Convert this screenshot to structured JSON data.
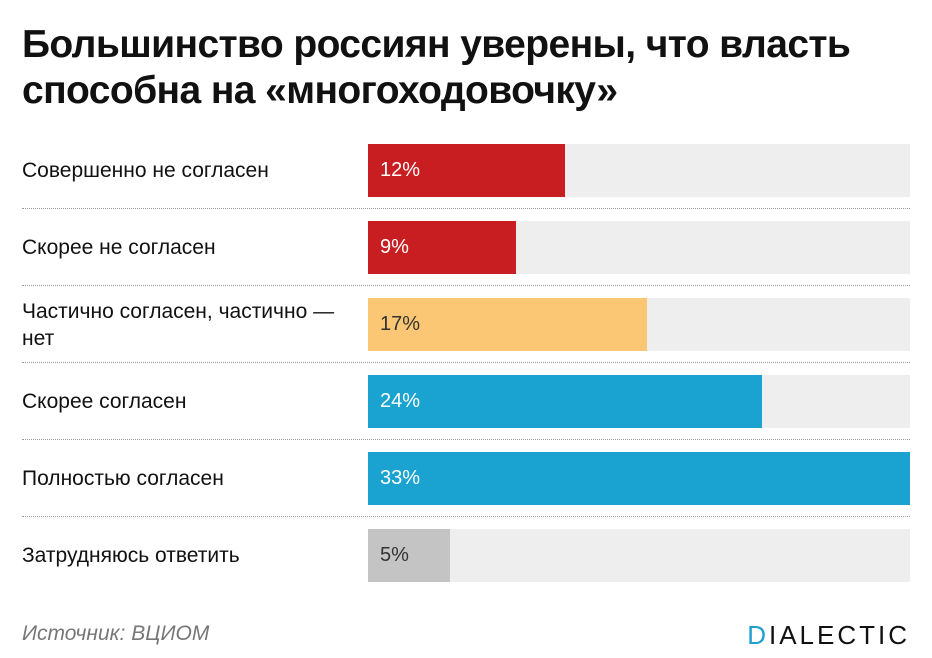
{
  "title": "Большинство россиян уверены, что власть способна на «многоходовочку»",
  "source": "Источник: ВЦИОМ",
  "brand": {
    "first_letter": "D",
    "rest": "IALECTIC"
  },
  "colors": {
    "strong_disagree": "#c81e22",
    "disagree": "#c81e22",
    "neutral": "#fbc774",
    "agree": "#1aa3d1",
    "strong_agree": "#1aa3d1",
    "unsure": "#c4c4c4",
    "track": "#eeeeee",
    "brand_accent": "#1f9fd0"
  },
  "chart_data": {
    "type": "bar",
    "orientation": "horizontal",
    "title": "Большинство россиян уверены, что власть способна на «многоходовочку»",
    "xlim": [
      0,
      33
    ],
    "categories": [
      "Совершенно не согласен",
      "Скорее не согласен",
      "Частично согласен, частично — нет",
      "Скорее согласен",
      "Полностью согласен",
      "Затрудняюсь ответить"
    ],
    "values": [
      12,
      9,
      17,
      24,
      33,
      5
    ],
    "labels": [
      "12%",
      "9%",
      "17%",
      "24%",
      "33%",
      "5%"
    ],
    "bar_colors": [
      "#c81e22",
      "#c81e22",
      "#fbc774",
      "#1aa3d1",
      "#1aa3d1",
      "#c4c4c4"
    ],
    "label_colors": [
      "#ffffff",
      "#ffffff",
      "#333333",
      "#ffffff",
      "#ffffff",
      "#333333"
    ]
  }
}
